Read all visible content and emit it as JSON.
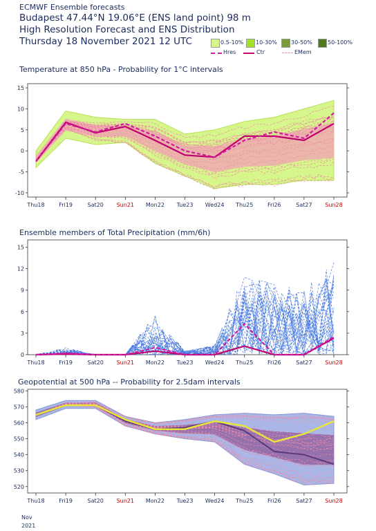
{
  "header": {
    "line1": "ECMWF Ensemble forecasts",
    "line2": "Budapest 47.44°N 19.06°E (ENS land point) 98 m",
    "line3": "High Resolution Forecast and ENS Distribution",
    "line4": "Thursday 18 November 2021 12 UTC"
  },
  "legend": {
    "prob_labels": [
      "0.5-10%",
      "10-30%",
      "30-50%",
      "50-100%"
    ],
    "prob_colors": [
      "#d6f58a",
      "#a2e02a",
      "#7a9a3c",
      "#4d7a1a"
    ],
    "line_labels": [
      "Hres",
      "Ctr",
      "EMem"
    ]
  },
  "colors": {
    "hres": "#d01aa0",
    "ctr": "#c0006e",
    "emem": "#f08aa8",
    "axis_text": "#1a2a5c",
    "weekend": "#cc0000"
  },
  "x_ticks": [
    "Thu18",
    "Fri19",
    "Sat20",
    "Sun21",
    "Mon22",
    "Tue23",
    "Wed24",
    "Thu25",
    "Fri26",
    "Sat27",
    "Sun28"
  ],
  "weekend_ticks": [
    "Sun21",
    "Sun28"
  ],
  "date_footer": [
    "Nov",
    "2021"
  ],
  "chart_data": [
    {
      "type": "line",
      "title": "Temperature at 850 hPa - Probability for 1°C intervals",
      "x": [
        "Thu18",
        "Fri19",
        "Sat20",
        "Sun21",
        "Mon22",
        "Tue23",
        "Wed24",
        "Thu25",
        "Fri26",
        "Sat27",
        "Sun28"
      ],
      "ylim": [
        -11,
        16
      ],
      "yticks": [
        -10,
        -5,
        0,
        5,
        10,
        15
      ],
      "grid": false,
      "series": [
        {
          "name": "Hres",
          "values": [
            -2.5,
            6.5,
            4.5,
            6.5,
            3.5,
            0,
            -1.5,
            2.5,
            4.5,
            3,
            9
          ]
        },
        {
          "name": "Ctr",
          "values": [
            -2.5,
            6.8,
            4.3,
            5.8,
            2.5,
            -1,
            -1.5,
            3.5,
            3.5,
            2.5,
            6.5
          ]
        }
      ],
      "ensemble_band": {
        "upper": [
          0,
          9.5,
          8,
          7.5,
          7.5,
          4,
          5,
          7,
          8,
          10,
          12
        ],
        "lower": [
          -4,
          3,
          1.5,
          2,
          -3,
          -6,
          -9,
          -8,
          -8,
          -7,
          -7
        ]
      }
    },
    {
      "type": "line",
      "title": "Ensemble members of Total Precipitation (mm/6h)",
      "x": [
        "Thu18",
        "Fri19",
        "Sat20",
        "Sun21",
        "Mon22",
        "Tue23",
        "Wed24",
        "Thu25",
        "Fri26",
        "Sat27",
        "Sun28"
      ],
      "ylim": [
        0,
        16
      ],
      "yticks": [
        0,
        3,
        6,
        9,
        12,
        15
      ],
      "grid": false,
      "series": [
        {
          "name": "Hres",
          "values": [
            0,
            0.2,
            0,
            0,
            1,
            0,
            0,
            4.3,
            0,
            0,
            2.5
          ]
        },
        {
          "name": "Ctr",
          "values": [
            0,
            0.1,
            0,
            0,
            0.5,
            0,
            0,
            1.2,
            0,
            0,
            2.3
          ]
        }
      ],
      "ensemble_peaks": [
        0,
        1,
        0,
        0,
        5.7,
        0.5,
        1.5,
        11.5,
        10,
        9,
        13.5
      ]
    },
    {
      "type": "line",
      "title": "Geopotential at 500 hPa -- Probability for 2.5dam intervals",
      "x": [
        "Thu18",
        "Fri19",
        "Sat20",
        "Sun21",
        "Mon22",
        "Tue23",
        "Wed24",
        "Thu25",
        "Fri26",
        "Sat27",
        "Sun28"
      ],
      "ylim": [
        516,
        581
      ],
      "yticks": [
        520,
        530,
        540,
        550,
        560,
        570,
        580
      ],
      "grid": false,
      "series": [
        {
          "name": "Hres",
          "values": [
            565,
            571,
            571,
            562,
            556,
            556,
            561,
            558,
            548,
            553,
            561
          ]
        },
        {
          "name": "Ctr",
          "values": [
            565,
            571,
            571,
            561,
            556,
            557,
            561,
            555,
            542,
            540,
            534
          ]
        }
      ],
      "ensemble_band": {
        "upper": [
          568,
          574,
          574,
          564,
          560,
          562,
          565,
          566,
          565,
          566,
          564
        ],
        "lower": [
          562,
          569,
          569,
          558,
          553,
          550,
          548,
          534,
          528,
          521,
          522
        ]
      }
    }
  ]
}
